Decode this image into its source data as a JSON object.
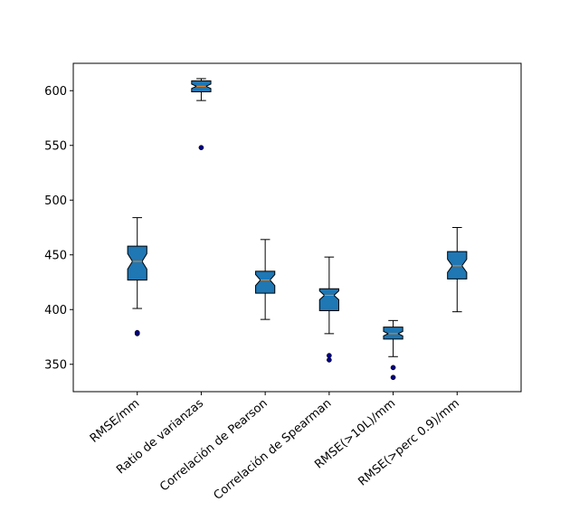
{
  "chart_data": {
    "type": "boxplot",
    "title": "",
    "xlabel": "",
    "ylabel": "",
    "ylim": [
      325,
      625
    ],
    "yticks": [
      350,
      400,
      450,
      500,
      550,
      600
    ],
    "notched": true,
    "box_color": "#1f77b4",
    "median_color": "#ff7f0e",
    "flier_color": "#000080",
    "categories": [
      "RMSE/mm",
      "Ratio de varianzas",
      "Correlación de Pearson",
      "Correlación de Spearman",
      "RMSE(>10L)/mm",
      "RMSE(>perc 0.9)/mm"
    ],
    "boxes": [
      {
        "whisker_low": 401,
        "q1": 427,
        "median": 444,
        "q3": 458,
        "whisker_high": 484,
        "notch_low": 437,
        "notch_high": 451,
        "fliers": [
          378,
          379
        ]
      },
      {
        "whisker_low": 591,
        "q1": 599,
        "median": 604,
        "q3": 609,
        "whisker_high": 611,
        "notch_low": 602,
        "notch_high": 606,
        "fliers": [
          548
        ]
      },
      {
        "whisker_low": 391,
        "q1": 415,
        "median": 427,
        "q3": 435,
        "whisker_high": 464,
        "notch_low": 422,
        "notch_high": 432,
        "fliers": []
      },
      {
        "whisker_low": 378,
        "q1": 399,
        "median": 413,
        "q3": 419,
        "whisker_high": 448,
        "notch_low": 409,
        "notch_high": 417,
        "fliers": [
          354,
          358
        ]
      },
      {
        "whisker_low": 357,
        "q1": 373,
        "median": 378,
        "q3": 384,
        "whisker_high": 390,
        "notch_low": 376,
        "notch_high": 380,
        "fliers": [
          338,
          347
        ]
      },
      {
        "whisker_low": 398,
        "q1": 428,
        "median": 440,
        "q3": 453,
        "whisker_high": 475,
        "notch_low": 434,
        "notch_high": 446,
        "fliers": []
      }
    ]
  }
}
